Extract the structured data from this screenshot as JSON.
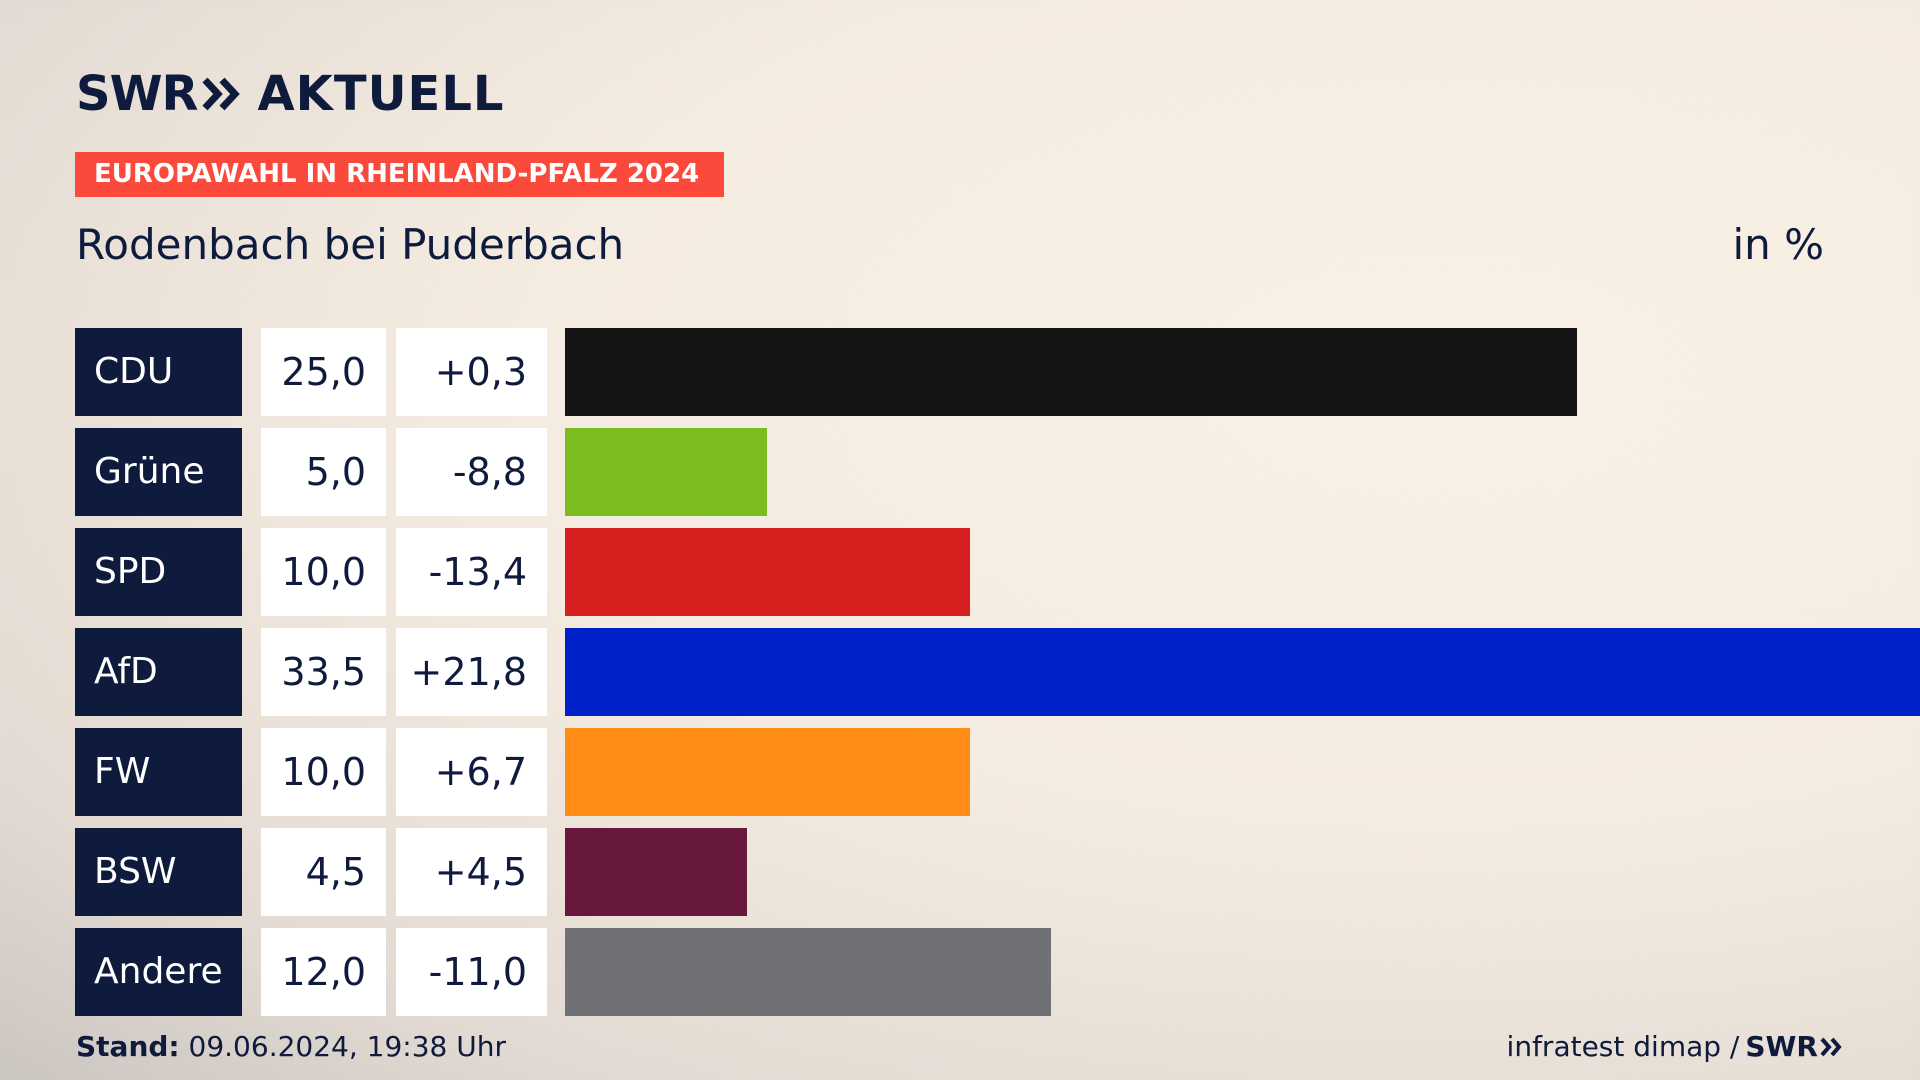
{
  "header": {
    "logo_left": "SWR",
    "logo_right": "AKTUELL",
    "tag": "EUROPAWAHL IN RHEINLAND-PFALZ 2024",
    "subtitle": "Rodenbach bei Puderbach",
    "unit": "in %"
  },
  "footer": {
    "stand_label": "Stand:",
    "stand_value": "09.06.2024, 19:38 Uhr",
    "source": "infratest dimap /",
    "source_logo": "SWR"
  },
  "chart_data": {
    "type": "bar",
    "orientation": "horizontal",
    "categories": [
      "CDU",
      "Grüne",
      "SPD",
      "AfD",
      "FW",
      "BSW",
      "Andere"
    ],
    "values": [
      25.0,
      5.0,
      10.0,
      33.5,
      10.0,
      4.5,
      12.0
    ],
    "value_labels": [
      "25,0",
      "5,0",
      "10,0",
      "33,5",
      "10,0",
      "4,5",
      "12,0"
    ],
    "diff_labels": [
      "+0,3",
      "-8,8",
      "-13,4",
      "+21,8",
      "+6,7",
      "+4,5",
      "-11,0"
    ],
    "colors": [
      "#141414",
      "#7bbd1e",
      "#d71f1f",
      "#0020c8",
      "#ff8c14",
      "#68173d",
      "#707174"
    ],
    "xlim": [
      0,
      33.5
    ],
    "unit": "in %"
  }
}
